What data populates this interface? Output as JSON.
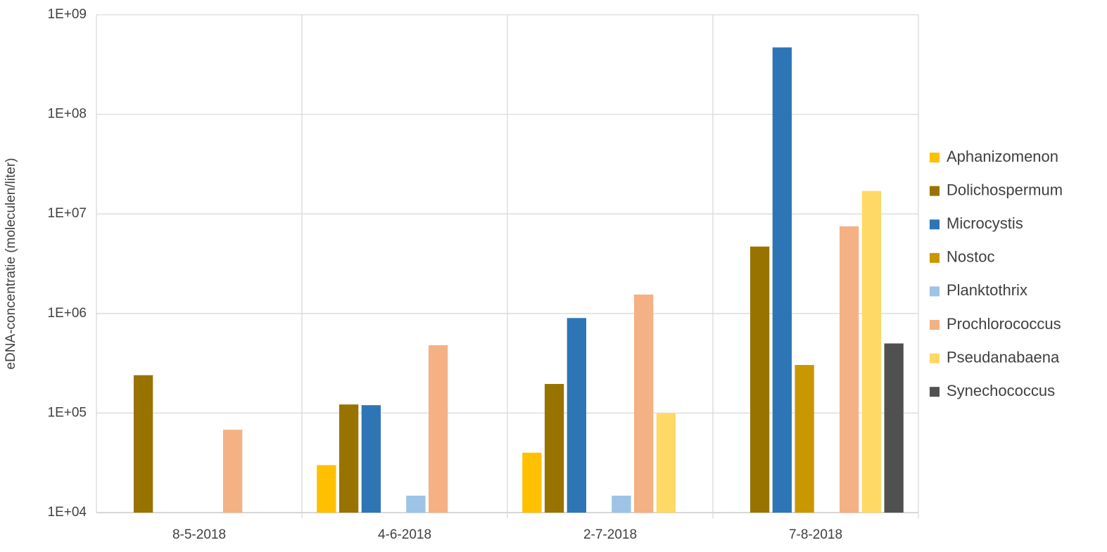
{
  "chart_data": {
    "type": "bar",
    "y_label": "eDNA-concentratie  (moleculen/liter)",
    "categories": [
      "8-5-2018",
      "4-6-2018",
      "2-7-2018",
      "7-8-2018"
    ],
    "series": [
      {
        "name": "Aphanizomenon",
        "color": "#ffc000",
        "values": [
          null,
          30000,
          40000,
          null
        ]
      },
      {
        "name": "Dolichospermum",
        "color": "#997300",
        "values": [
          240000,
          122000,
          196000,
          4700000
        ]
      },
      {
        "name": "Microcystis",
        "color": "#2e75b6",
        "values": [
          null,
          120000,
          900000,
          470000000
        ]
      },
      {
        "name": "Nostoc",
        "color": "#c99700",
        "values": [
          null,
          null,
          null,
          304000
        ]
      },
      {
        "name": "Planktothrix",
        "color": "#9dc3e6",
        "values": [
          null,
          14800,
          14800,
          null
        ]
      },
      {
        "name": "Prochlorococcus",
        "color": "#f4b183",
        "values": [
          68000,
          480000,
          1550000,
          7500000
        ]
      },
      {
        "name": "Pseudanabaena",
        "color": "#ffd966",
        "values": [
          null,
          null,
          100000,
          17000000
        ]
      },
      {
        "name": "Synechococcus",
        "color": "#505050",
        "values": [
          null,
          null,
          null,
          500000
        ]
      }
    ],
    "yscale": "log",
    "ylim": [
      10000,
      1000000000
    ],
    "yticks": [
      {
        "value": 10000,
        "label": "1E+04"
      },
      {
        "value": 100000,
        "label": "1E+05"
      },
      {
        "value": 1000000,
        "label": "1E+06"
      },
      {
        "value": 10000000,
        "label": "1E+07"
      },
      {
        "value": 100000000,
        "label": "1E+08"
      },
      {
        "value": 1000000000,
        "label": "1E+09"
      }
    ],
    "grid": true,
    "legend": "right"
  }
}
